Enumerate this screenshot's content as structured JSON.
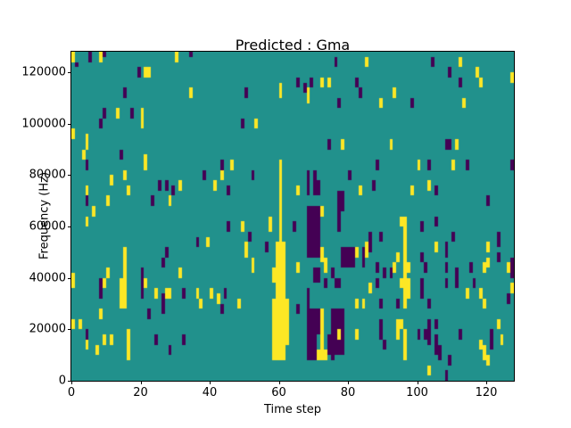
{
  "figure": {
    "title": "Predicted : Gma",
    "xlabel": "Time step",
    "ylabel": "Frequency (Hz)"
  },
  "chart_data": {
    "type": "heatmap",
    "title": "Predicted : Gma",
    "xlabel": "Time step",
    "ylabel": "Frequency (Hz)",
    "x_range": [
      0,
      128
    ],
    "y_range": [
      0,
      128000
    ],
    "grid": {
      "cols": 128,
      "rows": 64,
      "col_width_time_steps": 1,
      "row_height_hz": 2000
    },
    "xticks": [
      0,
      20,
      40,
      60,
      80,
      100,
      120
    ],
    "yticks": [
      0,
      20000,
      40000,
      60000,
      80000,
      100000,
      120000
    ],
    "legend": "none",
    "colors": {
      "background_class": "#21918c",
      "yellow_class": "#fde725",
      "purple_class": "#440154",
      "axes_text": "#000000",
      "figure_bg": "#ffffff"
    },
    "cells_note": "Each run is [time_step_column, row_start, row_end] with rows counted from bottom; one row = 2000 Hz.",
    "cells": {
      "yellow": [
        [
          0,
          62,
          63
        ],
        [
          8,
          62,
          63
        ],
        [
          30,
          62,
          63
        ],
        [
          21,
          59,
          60
        ],
        [
          22,
          59,
          60
        ],
        [
          34,
          55,
          56
        ],
        [
          13,
          51,
          52
        ],
        [
          20,
          49,
          52
        ],
        [
          0,
          47,
          48
        ],
        [
          4,
          45,
          47
        ],
        [
          3,
          43,
          44
        ],
        [
          21,
          42,
          43
        ],
        [
          60,
          55,
          57
        ],
        [
          68,
          54,
          56
        ],
        [
          72,
          57,
          58
        ],
        [
          74,
          57,
          58
        ],
        [
          85,
          61,
          62
        ],
        [
          53,
          49,
          50
        ],
        [
          78,
          45,
          46
        ],
        [
          112,
          61,
          62
        ],
        [
          117,
          59,
          60
        ],
        [
          118,
          57,
          58
        ],
        [
          127,
          58,
          59
        ],
        [
          93,
          55,
          56
        ],
        [
          89,
          53,
          54
        ],
        [
          113,
          53,
          54
        ],
        [
          92,
          45,
          46
        ],
        [
          111,
          45,
          46
        ],
        [
          21,
          41,
          42
        ],
        [
          46,
          41,
          42
        ],
        [
          100,
          41,
          42
        ],
        [
          110,
          41,
          42
        ],
        [
          15,
          39,
          40
        ],
        [
          43,
          39,
          40
        ],
        [
          11,
          38,
          39
        ],
        [
          31,
          37,
          38
        ],
        [
          41,
          37,
          38
        ],
        [
          103,
          37,
          38
        ],
        [
          4,
          36,
          37
        ],
        [
          16,
          36,
          37
        ],
        [
          65,
          36,
          37
        ],
        [
          83,
          36,
          37
        ],
        [
          98,
          36,
          37
        ],
        [
          10,
          34,
          35
        ],
        [
          28,
          34,
          35
        ],
        [
          6,
          32,
          33
        ],
        [
          72,
          32,
          33
        ],
        [
          4,
          30,
          31
        ],
        [
          49,
          29,
          30
        ],
        [
          57,
          29,
          31
        ],
        [
          95,
          30,
          31
        ],
        [
          39,
          26,
          27
        ],
        [
          50,
          24,
          26
        ],
        [
          82,
          24,
          25
        ],
        [
          85,
          24,
          26
        ],
        [
          105,
          25,
          26
        ],
        [
          120,
          25,
          26
        ],
        [
          15,
          22,
          25
        ],
        [
          52,
          21,
          23
        ],
        [
          65,
          21,
          22
        ],
        [
          72,
          23,
          25
        ],
        [
          73,
          21,
          23
        ],
        [
          93,
          21,
          22
        ],
        [
          94,
          23,
          24
        ],
        [
          97,
          21,
          22
        ],
        [
          119,
          21,
          22
        ],
        [
          120,
          22,
          23
        ],
        [
          126,
          21,
          22
        ],
        [
          0,
          18,
          20
        ],
        [
          10,
          20,
          21
        ],
        [
          15,
          14,
          21
        ],
        [
          31,
          20,
          21
        ],
        [
          9,
          18,
          19
        ],
        [
          14,
          14,
          19
        ],
        [
          21,
          18,
          19
        ],
        [
          24,
          16,
          17
        ],
        [
          27,
          16,
          17
        ],
        [
          28,
          16,
          17
        ],
        [
          36,
          16,
          17
        ],
        [
          40,
          16,
          17
        ],
        [
          42,
          15,
          16
        ],
        [
          37,
          14,
          15
        ],
        [
          86,
          17,
          18
        ],
        [
          95,
          18,
          19
        ],
        [
          97,
          16,
          19
        ],
        [
          114,
          16,
          17
        ],
        [
          118,
          16,
          17
        ],
        [
          127,
          17,
          18
        ],
        [
          8,
          12,
          13
        ],
        [
          0,
          10,
          11
        ],
        [
          2,
          10,
          11
        ],
        [
          94,
          8,
          11
        ],
        [
          95,
          10,
          11
        ],
        [
          123,
          10,
          11
        ],
        [
          119,
          14,
          15
        ],
        [
          4,
          6,
          7
        ],
        [
          9,
          7,
          8
        ],
        [
          11,
          7,
          8
        ],
        [
          7,
          5,
          6
        ],
        [
          16,
          4,
          9
        ],
        [
          48,
          14,
          15
        ],
        [
          72,
          4,
          13
        ],
        [
          71,
          4,
          5
        ],
        [
          73,
          4,
          5
        ],
        [
          77,
          8,
          9
        ],
        [
          82,
          8,
          9
        ],
        [
          82,
          14,
          15
        ],
        [
          84,
          14,
          15
        ],
        [
          96,
          4,
          9
        ],
        [
          96,
          14,
          31
        ],
        [
          118,
          6,
          7
        ],
        [
          124,
          7,
          8
        ],
        [
          119,
          4,
          6
        ],
        [
          120,
          3,
          4
        ],
        [
          103,
          1,
          2
        ],
        [
          58,
          4,
          15
        ],
        [
          58,
          19,
          21
        ],
        [
          59,
          4,
          26
        ],
        [
          60,
          4,
          42
        ],
        [
          60,
          55,
          57
        ],
        [
          61,
          4,
          26
        ],
        [
          62,
          7,
          15
        ]
      ],
      "purple": [
        [
          5,
          62,
          63
        ],
        [
          9,
          63,
          63
        ],
        [
          34,
          63,
          63
        ],
        [
          1,
          61,
          61
        ],
        [
          19,
          59,
          60
        ],
        [
          15,
          55,
          56
        ],
        [
          9,
          51,
          52
        ],
        [
          17,
          51,
          52
        ],
        [
          8,
          49,
          50
        ],
        [
          14,
          43,
          44
        ],
        [
          76,
          61,
          62
        ],
        [
          65,
          57,
          58
        ],
        [
          67,
          56,
          57
        ],
        [
          69,
          57,
          58
        ],
        [
          82,
          57,
          58
        ],
        [
          83,
          55,
          56
        ],
        [
          50,
          55,
          56
        ],
        [
          77,
          53,
          54
        ],
        [
          49,
          49,
          50
        ],
        [
          74,
          45,
          46
        ],
        [
          43,
          41,
          42
        ],
        [
          104,
          61,
          62
        ],
        [
          109,
          59,
          60
        ],
        [
          112,
          57,
          58
        ],
        [
          98,
          53,
          54
        ],
        [
          108,
          45,
          46
        ],
        [
          109,
          45,
          46
        ],
        [
          88,
          41,
          42
        ],
        [
          103,
          41,
          42
        ],
        [
          114,
          41,
          42
        ],
        [
          127,
          41,
          42
        ],
        [
          4,
          41,
          42
        ],
        [
          38,
          39,
          40
        ],
        [
          25,
          37,
          38
        ],
        [
          27,
          37,
          38
        ],
        [
          29,
          36,
          37
        ],
        [
          87,
          37,
          38
        ],
        [
          4,
          34,
          35
        ],
        [
          23,
          34,
          35
        ],
        [
          120,
          34,
          35
        ],
        [
          52,
          39,
          40
        ],
        [
          45,
          36,
          37
        ],
        [
          68,
          39,
          40
        ],
        [
          70,
          39,
          40
        ],
        [
          80,
          39,
          40
        ],
        [
          68,
          36,
          38
        ],
        [
          70,
          36,
          38
        ],
        [
          71,
          36,
          38
        ],
        [
          77,
          29,
          36
        ],
        [
          78,
          33,
          36
        ],
        [
          36,
          26,
          27
        ],
        [
          45,
          29,
          30
        ],
        [
          51,
          27,
          28
        ],
        [
          56,
          25,
          26
        ],
        [
          64,
          29,
          30
        ],
        [
          68,
          24,
          33
        ],
        [
          69,
          24,
          33
        ],
        [
          70,
          24,
          33
        ],
        [
          71,
          24,
          33
        ],
        [
          105,
          36,
          37
        ],
        [
          101,
          29,
          30
        ],
        [
          105,
          30,
          31
        ],
        [
          86,
          25,
          28
        ],
        [
          89,
          27,
          28
        ],
        [
          108,
          24,
          26
        ],
        [
          110,
          27,
          28
        ],
        [
          123,
          26,
          28
        ],
        [
          123,
          23,
          24
        ],
        [
          101,
          23,
          24
        ],
        [
          27,
          24,
          25
        ],
        [
          26,
          22,
          23
        ],
        [
          78,
          22,
          25
        ],
        [
          79,
          22,
          25
        ],
        [
          80,
          22,
          25
        ],
        [
          81,
          22,
          25
        ],
        [
          84,
          22,
          25
        ],
        [
          88,
          21,
          22
        ],
        [
          102,
          21,
          22
        ],
        [
          108,
          21,
          22
        ],
        [
          115,
          21,
          22
        ],
        [
          127,
          22,
          23
        ],
        [
          126,
          15,
          16
        ],
        [
          20,
          20,
          21
        ],
        [
          20,
          16,
          19
        ],
        [
          8,
          16,
          19
        ],
        [
          22,
          12,
          13
        ],
        [
          26,
          13,
          16
        ],
        [
          32,
          16,
          17
        ],
        [
          4,
          8,
          9
        ],
        [
          24,
          7,
          8
        ],
        [
          28,
          5,
          6
        ],
        [
          32,
          7,
          8
        ],
        [
          44,
          16,
          17
        ],
        [
          43,
          13,
          14
        ],
        [
          65,
          13,
          14
        ],
        [
          68,
          4,
          17
        ],
        [
          69,
          4,
          13
        ],
        [
          70,
          4,
          13
        ],
        [
          71,
          9,
          13
        ],
        [
          70,
          19,
          21
        ],
        [
          71,
          19,
          21
        ],
        [
          73,
          18,
          19
        ],
        [
          75,
          20,
          21
        ],
        [
          76,
          18,
          19
        ],
        [
          77,
          18,
          19
        ],
        [
          75,
          4,
          13
        ],
        [
          76,
          5,
          13
        ],
        [
          77,
          5,
          7
        ],
        [
          77,
          10,
          13
        ],
        [
          78,
          5,
          13
        ],
        [
          74,
          5,
          8
        ],
        [
          90,
          20,
          21
        ],
        [
          92,
          20,
          21
        ],
        [
          88,
          18,
          19
        ],
        [
          94,
          14,
          15
        ],
        [
          89,
          14,
          15
        ],
        [
          101,
          16,
          19
        ],
        [
          108,
          18,
          19
        ],
        [
          111,
          18,
          21
        ],
        [
          116,
          18,
          19
        ],
        [
          89,
          8,
          11
        ],
        [
          90,
          6,
          7
        ],
        [
          103,
          14,
          15
        ],
        [
          103,
          7,
          11
        ],
        [
          100,
          8,
          9
        ],
        [
          102,
          8,
          9
        ],
        [
          105,
          10,
          11
        ],
        [
          105,
          5,
          8
        ],
        [
          106,
          4,
          6
        ],
        [
          112,
          8,
          9
        ],
        [
          121,
          6,
          9
        ],
        [
          109,
          3,
          4
        ],
        [
          108,
          0,
          1
        ],
        [
          127,
          20,
          21
        ]
      ]
    }
  }
}
